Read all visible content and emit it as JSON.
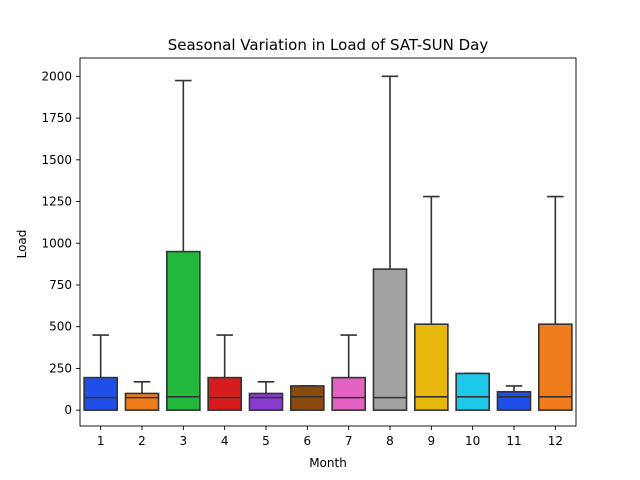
{
  "chart_data": {
    "type": "box",
    "title": "Seasonal Variation in Load of SAT-SUN Day",
    "xlabel": "Month",
    "ylabel": "Load",
    "ylim": [
      -95,
      2110
    ],
    "yticks": [
      0,
      250,
      500,
      750,
      1000,
      1250,
      1500,
      1750,
      2000
    ],
    "ytick_labels": [
      "0",
      "250",
      "500",
      "750",
      "1000",
      "1250",
      "1500",
      "1750",
      "2000"
    ],
    "categories": [
      "1",
      "2",
      "3",
      "4",
      "5",
      "6",
      "7",
      "8",
      "9",
      "10",
      "11",
      "12"
    ],
    "grid": false,
    "boxes": [
      {
        "month": "1",
        "whisker_low": 0,
        "q1": 0,
        "median": 75,
        "q3": 195,
        "whisker_high": 450,
        "color": "#1f4fe8"
      },
      {
        "month": "2",
        "whisker_low": 0,
        "q1": 0,
        "median": 75,
        "q3": 100,
        "whisker_high": 170,
        "color": "#f07c1b"
      },
      {
        "month": "3",
        "whisker_low": 0,
        "q1": 0,
        "median": 80,
        "q3": 950,
        "whisker_high": 1975,
        "color": "#21b83c"
      },
      {
        "month": "4",
        "whisker_low": 0,
        "q1": 0,
        "median": 75,
        "q3": 195,
        "whisker_high": 450,
        "color": "#d61c1c"
      },
      {
        "month": "5",
        "whisker_low": 0,
        "q1": 0,
        "median": 75,
        "q3": 100,
        "whisker_high": 170,
        "color": "#8a3cd0"
      },
      {
        "month": "6",
        "whisker_low": 0,
        "q1": 0,
        "median": 80,
        "q3": 145,
        "whisker_high": 145,
        "color": "#8a4a0d"
      },
      {
        "month": "7",
        "whisker_low": 0,
        "q1": 0,
        "median": 75,
        "q3": 195,
        "whisker_high": 450,
        "color": "#e462c2"
      },
      {
        "month": "8",
        "whisker_low": 0,
        "q1": 0,
        "median": 75,
        "q3": 845,
        "whisker_high": 2000,
        "color": "#a3a3a3"
      },
      {
        "month": "9",
        "whisker_low": 0,
        "q1": 0,
        "median": 80,
        "q3": 515,
        "whisker_high": 1280,
        "color": "#e8b80f"
      },
      {
        "month": "10",
        "whisker_low": 0,
        "q1": 0,
        "median": 80,
        "q3": 220,
        "whisker_high": 220,
        "color": "#1ec8e8"
      },
      {
        "month": "11",
        "whisker_low": 0,
        "q1": 0,
        "median": 80,
        "q3": 110,
        "whisker_high": 145,
        "color": "#1f4fe8"
      },
      {
        "month": "12",
        "whisker_low": 0,
        "q1": 0,
        "median": 80,
        "q3": 515,
        "whisker_high": 1280,
        "color": "#f07c1b"
      }
    ]
  }
}
